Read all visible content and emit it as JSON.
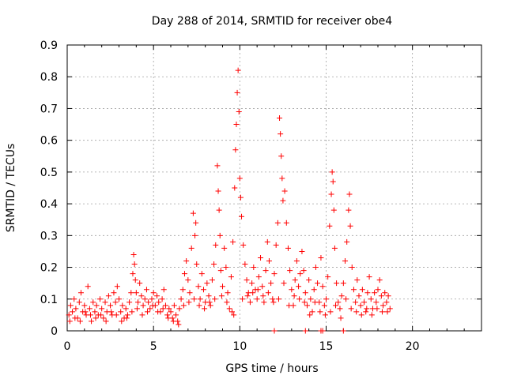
{
  "chart_data": {
    "type": "scatter",
    "title": "Day 288 of 2014, SRMTID for receiver obe4",
    "xlabel": "GPS time / hours",
    "ylabel": "SRMTID / TECUs",
    "xlim": [
      0,
      24
    ],
    "ylim": [
      0,
      0.9
    ],
    "x_ticks": [
      0,
      5,
      10,
      15,
      20
    ],
    "x_tick_labels": [
      "0",
      "5",
      "10",
      "15",
      "20"
    ],
    "y_ticks": [
      0,
      0.1,
      0.2,
      0.3,
      0.4,
      0.5,
      0.6,
      0.7,
      0.8,
      0.9
    ],
    "y_tick_labels": [
      "0",
      "0.1",
      "0.2",
      "0.3",
      "0.4",
      "0.5",
      "0.6",
      "0.7",
      "0.8",
      "0.9"
    ],
    "grid": true,
    "marker": "plus",
    "color": "#ff0000",
    "series": [
      {
        "name": "SRMTID",
        "points": [
          [
            0.1,
            0.05
          ],
          [
            0.2,
            0.08
          ],
          [
            0.3,
            0.06
          ],
          [
            0.4,
            0.1
          ],
          [
            0.5,
            0.07
          ],
          [
            0.6,
            0.04
          ],
          [
            0.7,
            0.09
          ],
          [
            0.8,
            0.12
          ],
          [
            0.9,
            0.06
          ],
          [
            1.0,
            0.08
          ],
          [
            1.1,
            0.05
          ],
          [
            1.2,
            0.14
          ],
          [
            1.3,
            0.07
          ],
          [
            1.4,
            0.03
          ],
          [
            1.5,
            0.09
          ],
          [
            1.6,
            0.06
          ],
          [
            1.7,
            0.08
          ],
          [
            1.8,
            0.05
          ],
          [
            1.9,
            0.1
          ],
          [
            2.0,
            0.07
          ],
          [
            2.1,
            0.04
          ],
          [
            2.2,
            0.09
          ],
          [
            2.3,
            0.06
          ],
          [
            2.4,
            0.11
          ],
          [
            2.5,
            0.08
          ],
          [
            2.6,
            0.05
          ],
          [
            2.7,
            0.12
          ],
          [
            2.8,
            0.09
          ],
          [
            2.9,
            0.14
          ],
          [
            3.0,
            0.1
          ],
          [
            3.1,
            0.06
          ],
          [
            3.2,
            0.08
          ],
          [
            3.3,
            0.04
          ],
          [
            3.4,
            0.07
          ],
          [
            3.5,
            0.05
          ],
          [
            3.6,
            0.09
          ],
          [
            3.7,
            0.12
          ],
          [
            3.8,
            0.18
          ],
          [
            3.85,
            0.24
          ],
          [
            3.9,
            0.21
          ],
          [
            3.95,
            0.16
          ],
          [
            4.0,
            0.12
          ],
          [
            4.1,
            0.09
          ],
          [
            4.2,
            0.15
          ],
          [
            4.3,
            0.11
          ],
          [
            4.4,
            0.08
          ],
          [
            4.5,
            0.1
          ],
          [
            4.6,
            0.13
          ],
          [
            4.7,
            0.09
          ],
          [
            4.8,
            0.07
          ],
          [
            4.9,
            0.1
          ],
          [
            5.0,
            0.12
          ],
          [
            5.1,
            0.08
          ],
          [
            5.2,
            0.11
          ],
          [
            5.3,
            0.09
          ],
          [
            5.4,
            0.06
          ],
          [
            5.5,
            0.1
          ],
          [
            5.6,
            0.13
          ],
          [
            5.7,
            0.08
          ],
          [
            5.8,
            0.05
          ],
          [
            5.9,
            0.07
          ],
          [
            6.0,
            0.06
          ],
          [
            6.1,
            0.04
          ],
          [
            6.2,
            0.08
          ],
          [
            6.3,
            0.05
          ],
          [
            6.4,
            0.03
          ],
          [
            6.5,
            0.07
          ],
          [
            6.6,
            0.1
          ],
          [
            6.7,
            0.13
          ],
          [
            6.8,
            0.18
          ],
          [
            6.9,
            0.22
          ],
          [
            7.0,
            0.16
          ],
          [
            7.1,
            0.12
          ],
          [
            7.2,
            0.26
          ],
          [
            7.3,
            0.37
          ],
          [
            7.4,
            0.3
          ],
          [
            7.45,
            0.34
          ],
          [
            7.5,
            0.21
          ],
          [
            7.6,
            0.14
          ],
          [
            7.7,
            0.1
          ],
          [
            7.8,
            0.18
          ],
          [
            7.9,
            0.13
          ],
          [
            8.0,
            0.09
          ],
          [
            8.1,
            0.15
          ],
          [
            8.2,
            0.11
          ],
          [
            8.3,
            0.08
          ],
          [
            8.4,
            0.16
          ],
          [
            8.5,
            0.21
          ],
          [
            8.6,
            0.27
          ],
          [
            8.7,
            0.52
          ],
          [
            8.75,
            0.44
          ],
          [
            8.8,
            0.38
          ],
          [
            8.85,
            0.3
          ],
          [
            8.9,
            0.19
          ],
          [
            9.0,
            0.14
          ],
          [
            9.1,
            0.26
          ],
          [
            9.2,
            0.2
          ],
          [
            9.3,
            0.12
          ],
          [
            9.4,
            0.07
          ],
          [
            9.5,
            0.17
          ],
          [
            9.6,
            0.28
          ],
          [
            9.7,
            0.45
          ],
          [
            9.75,
            0.57
          ],
          [
            9.8,
            0.65
          ],
          [
            9.85,
            0.75
          ],
          [
            9.9,
            0.82
          ],
          [
            9.95,
            0.69
          ],
          [
            10.0,
            0.48
          ],
          [
            10.05,
            0.42
          ],
          [
            10.1,
            0.36
          ],
          [
            10.2,
            0.27
          ],
          [
            10.3,
            0.21
          ],
          [
            10.4,
            0.16
          ],
          [
            10.5,
            0.12
          ],
          [
            10.6,
            0.09
          ],
          [
            10.7,
            0.15
          ],
          [
            10.8,
            0.2
          ],
          [
            10.9,
            0.13
          ],
          [
            11.0,
            0.1
          ],
          [
            11.1,
            0.17
          ],
          [
            11.2,
            0.23
          ],
          [
            11.3,
            0.14
          ],
          [
            11.4,
            0.09
          ],
          [
            11.5,
            0.19
          ],
          [
            11.6,
            0.28
          ],
          [
            11.7,
            0.22
          ],
          [
            11.8,
            0.15
          ],
          [
            11.9,
            0.1
          ],
          [
            12.0,
            0.18
          ],
          [
            12.1,
            0.27
          ],
          [
            12.2,
            0.34
          ],
          [
            12.3,
            0.67
          ],
          [
            12.35,
            0.62
          ],
          [
            12.4,
            0.55
          ],
          [
            12.45,
            0.48
          ],
          [
            12.5,
            0.41
          ],
          [
            12.6,
            0.44
          ],
          [
            12.7,
            0.34
          ],
          [
            12.8,
            0.26
          ],
          [
            12.9,
            0.19
          ],
          [
            13.0,
            0.13
          ],
          [
            13.1,
            0.08
          ],
          [
            13.2,
            0.16
          ],
          [
            13.3,
            0.22
          ],
          [
            13.4,
            0.14
          ],
          [
            13.5,
            0.18
          ],
          [
            13.6,
            0.25
          ],
          [
            13.7,
            0.19
          ],
          [
            13.8,
            0.12
          ],
          [
            13.9,
            0.08
          ],
          [
            14.0,
            0.16
          ],
          [
            14.1,
            0.1
          ],
          [
            14.2,
            0.06
          ],
          [
            14.3,
            0.13
          ],
          [
            14.4,
            0.2
          ],
          [
            14.5,
            0.15
          ],
          [
            14.6,
            0.09
          ],
          [
            14.7,
            0.23
          ],
          [
            14.8,
            0.14
          ],
          [
            14.9,
            0.08
          ],
          [
            15.0,
            0.1
          ],
          [
            15.1,
            0.17
          ],
          [
            15.2,
            0.33
          ],
          [
            15.3,
            0.43
          ],
          [
            15.35,
            0.5
          ],
          [
            15.4,
            0.47
          ],
          [
            15.45,
            0.38
          ],
          [
            15.5,
            0.26
          ],
          [
            15.6,
            0.15
          ],
          [
            15.7,
            0.09
          ],
          [
            15.8,
            0.07
          ],
          [
            15.9,
            0.11
          ],
          [
            16.0,
            0.15
          ],
          [
            16.1,
            0.22
          ],
          [
            16.2,
            0.28
          ],
          [
            16.3,
            0.38
          ],
          [
            16.35,
            0.43
          ],
          [
            16.4,
            0.33
          ],
          [
            16.5,
            0.2
          ],
          [
            16.6,
            0.13
          ],
          [
            16.7,
            0.09
          ],
          [
            16.8,
            0.16
          ],
          [
            16.9,
            0.11
          ],
          [
            17.0,
            0.08
          ],
          [
            17.1,
            0.13
          ],
          [
            17.2,
            0.09
          ],
          [
            17.3,
            0.06
          ],
          [
            17.4,
            0.12
          ],
          [
            17.5,
            0.17
          ],
          [
            17.6,
            0.1
          ],
          [
            17.7,
            0.07
          ],
          [
            17.8,
            0.12
          ],
          [
            17.9,
            0.09
          ],
          [
            18.0,
            0.13
          ],
          [
            18.1,
            0.16
          ],
          [
            18.2,
            0.11
          ],
          [
            18.3,
            0.08
          ],
          [
            18.4,
            0.12
          ],
          [
            18.5,
            0.09
          ],
          [
            18.6,
            0.11
          ],
          [
            18.7,
            0.07
          ],
          [
            0.15,
            0.03
          ],
          [
            0.45,
            0.04
          ],
          [
            0.75,
            0.03
          ],
          [
            1.05,
            0.06
          ],
          [
            1.35,
            0.05
          ],
          [
            1.65,
            0.04
          ],
          [
            1.95,
            0.05
          ],
          [
            2.25,
            0.03
          ],
          [
            2.55,
            0.06
          ],
          [
            2.85,
            0.05
          ],
          [
            3.15,
            0.03
          ],
          [
            3.45,
            0.04
          ],
          [
            3.75,
            0.06
          ],
          [
            4.05,
            0.07
          ],
          [
            4.35,
            0.05
          ],
          [
            4.65,
            0.06
          ],
          [
            4.95,
            0.08
          ],
          [
            5.25,
            0.06
          ],
          [
            5.55,
            0.07
          ],
          [
            5.85,
            0.04
          ],
          [
            6.15,
            0.03
          ],
          [
            6.45,
            0.02
          ],
          [
            6.75,
            0.08
          ],
          [
            7.05,
            0.09
          ],
          [
            7.35,
            0.1
          ],
          [
            7.65,
            0.08
          ],
          [
            7.95,
            0.07
          ],
          [
            8.25,
            0.09
          ],
          [
            8.55,
            0.1
          ],
          [
            8.95,
            0.11
          ],
          [
            9.25,
            0.09
          ],
          [
            9.55,
            0.06
          ],
          [
            9.65,
            0.05
          ],
          [
            10.15,
            0.1
          ],
          [
            10.45,
            0.11
          ],
          [
            10.75,
            0.12
          ],
          [
            11.05,
            0.13
          ],
          [
            11.35,
            0.11
          ],
          [
            11.65,
            0.12
          ],
          [
            11.95,
            0.09
          ],
          [
            12.25,
            0.1
          ],
          [
            12.55,
            0.15
          ],
          [
            12.85,
            0.08
          ],
          [
            13.15,
            0.11
          ],
          [
            13.45,
            0.1
          ],
          [
            13.75,
            0.09
          ],
          [
            14.05,
            0.05
          ],
          [
            14.35,
            0.09
          ],
          [
            14.65,
            0.06
          ],
          [
            14.95,
            0.05
          ],
          [
            15.25,
            0.06
          ],
          [
            15.55,
            0.08
          ],
          [
            15.85,
            0.04
          ],
          [
            16.15,
            0.1
          ],
          [
            16.45,
            0.07
          ],
          [
            16.75,
            0.06
          ],
          [
            17.05,
            0.05
          ],
          [
            17.35,
            0.07
          ],
          [
            17.65,
            0.05
          ],
          [
            17.95,
            0.07
          ],
          [
            18.25,
            0.06
          ],
          [
            18.55,
            0.06
          ],
          [
            12.0,
            0.0
          ],
          [
            13.8,
            0.0
          ],
          [
            14.7,
            0.0
          ],
          [
            14.8,
            0.0
          ],
          [
            16.0,
            0.0
          ]
        ]
      }
    ]
  }
}
